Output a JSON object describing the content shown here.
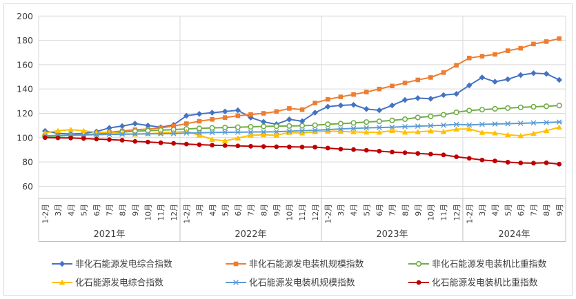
{
  "chart_data": {
    "type": "line",
    "title": "",
    "legend_position": "bottom",
    "grid": true,
    "background": "#ffffff",
    "grid_color": "#d9d9d9",
    "text_color": "#404040",
    "y_axis": {
      "min": 50,
      "max": 200,
      "tick_labels": [
        "200",
        "180",
        "160",
        "140",
        "120",
        "100",
        "80",
        "60"
      ],
      "ticks": [
        200,
        180,
        160,
        140,
        120,
        100,
        80,
        60
      ]
    },
    "x_axis": {
      "years": [
        {
          "label": "2021年",
          "months": [
            "1-2月",
            "3月",
            "4月",
            "5月",
            "6月",
            "7月",
            "8月",
            "9月",
            "10月",
            "11月",
            "12月"
          ]
        },
        {
          "label": "2022年",
          "months": [
            "1-2月",
            "3月",
            "4月",
            "5月",
            "6月",
            "7月",
            "8月",
            "9月",
            "10月",
            "11月",
            "12月"
          ]
        },
        {
          "label": "2023年",
          "months": [
            "1-2月",
            "3月",
            "4月",
            "5月",
            "6月",
            "7月",
            "8月",
            "9月",
            "10月",
            "11月",
            "12月"
          ]
        },
        {
          "label": "2024年",
          "months": [
            "1-2月",
            "3月",
            "4月",
            "5月",
            "6月",
            "7月",
            "8月",
            "9月"
          ]
        }
      ]
    },
    "series": [
      {
        "name": "非化石能源发电综合指数",
        "color": "#4472C4",
        "marker": "diamond",
        "values": [
          105.5,
          103.5,
          103,
          103.5,
          105,
          108,
          109.5,
          111.5,
          110,
          108.5,
          110.5,
          118,
          119.5,
          120.5,
          121.5,
          122.5,
          116.5,
          113,
          111,
          115,
          113.5,
          120.5,
          125.5,
          126.5,
          127,
          123.5,
          122.5,
          126.5,
          131,
          132.5,
          132,
          135,
          136,
          143,
          149.5,
          146,
          148,
          151.5,
          153,
          152.5,
          147.5
        ]
      },
      {
        "name": "非化石能源发电装机规模指数",
        "color": "#ED7D31",
        "marker": "square",
        "values": [
          101.5,
          101.5,
          102,
          102.5,
          103,
          104.5,
          105.5,
          106.5,
          107,
          108,
          109.5,
          111.5,
          113.5,
          115,
          116.5,
          118,
          119,
          120,
          121.5,
          124,
          123,
          128.5,
          131.5,
          133.5,
          135.5,
          137.5,
          140,
          142.5,
          145,
          147.5,
          149.5,
          153.5,
          159.5,
          165.5,
          167,
          168.5,
          171.5,
          173.5,
          177,
          179,
          181.5
        ]
      },
      {
        "name": "非化石能源发电装机比重指数",
        "color": "#70AD47",
        "marker": "circle-open",
        "values": [
          100.8,
          101.2,
          101.8,
          102.3,
          103,
          103.8,
          104.5,
          105.3,
          105.7,
          106.2,
          106.6,
          107.2,
          107.6,
          108,
          108.3,
          108.6,
          108.9,
          109.2,
          109.4,
          109.6,
          109.8,
          110.2,
          111,
          111.5,
          112.1,
          112.8,
          113.4,
          114.2,
          115.2,
          116.6,
          117.5,
          118.8,
          120.8,
          122.3,
          123,
          123.7,
          124.3,
          124.9,
          125.4,
          125.8,
          126.4
        ]
      },
      {
        "name": "化石能源发电综合指数",
        "color": "#FFC000",
        "marker": "triangle",
        "values": [
          104,
          105.7,
          106.6,
          105.7,
          104.3,
          104.5,
          103.2,
          102.8,
          103.2,
          103.8,
          104.3,
          105.1,
          102,
          98.5,
          97.3,
          99.6,
          102,
          102.3,
          102,
          104.2,
          103.8,
          104.7,
          105.3,
          105.1,
          104.7,
          104.5,
          104.4,
          105.7,
          104.4,
          104.7,
          105.5,
          104.9,
          107,
          107.2,
          104.2,
          103.8,
          102.3,
          101.5,
          103.4,
          105.7,
          108.5
        ]
      },
      {
        "name": "化石能源发电装机规模指数",
        "color": "#5B9BD5",
        "marker": "asterisk",
        "values": [
          101.5,
          101.8,
          102,
          102.2,
          102.4,
          102.6,
          102.8,
          103,
          103.1,
          103.2,
          103.3,
          103.8,
          104,
          104.2,
          104.4,
          104.5,
          104.6,
          104.7,
          104.8,
          105.3,
          105.7,
          106,
          106.6,
          107.2,
          107.6,
          108,
          108.3,
          108.6,
          109,
          109.4,
          109.8,
          110.2,
          110.9,
          110.4,
          110.9,
          111.2,
          111.5,
          111.8,
          112.1,
          112.4,
          112.8
        ]
      },
      {
        "name": "化石能源发电装机比重指数",
        "color": "#C00000",
        "marker": "circle",
        "values": [
          100,
          99.8,
          99.7,
          99.3,
          98.8,
          98.4,
          97.9,
          96.9,
          96.4,
          95.8,
          95.3,
          94.7,
          94.2,
          93.8,
          93.5,
          93.2,
          92.9,
          92.7,
          92.5,
          92.4,
          92.3,
          92.2,
          91.4,
          90.6,
          90.2,
          89.6,
          88.9,
          88.1,
          87.6,
          87,
          86.4,
          85.8,
          84.2,
          83,
          81.6,
          80.8,
          79.8,
          79.2,
          79,
          79.3,
          78.2
        ]
      }
    ]
  }
}
